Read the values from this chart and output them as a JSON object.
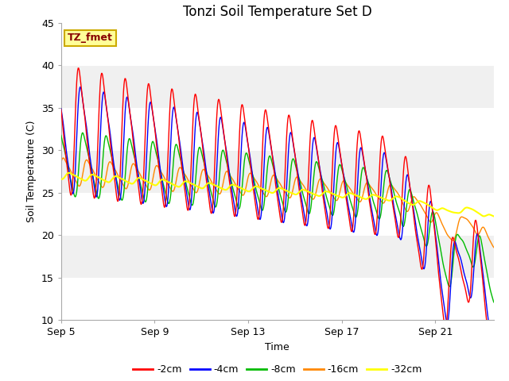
{
  "title": "Tonzi Soil Temperature Set D",
  "xlabel": "Time",
  "ylabel": "Soil Temperature (C)",
  "ylim": [
    10,
    45
  ],
  "colors": {
    "-2cm": "#ff0000",
    "-4cm": "#0000ff",
    "-8cm": "#00bb00",
    "-16cm": "#ff8800",
    "-32cm": "#ffff00"
  },
  "legend_labels": [
    "-2cm",
    "-4cm",
    "-8cm",
    "-16cm",
    "-32cm"
  ],
  "annotation_text": "TZ_fmet",
  "annotation_bg": "#ffff99",
  "annotation_border": "#ccaa00",
  "plot_bg_light": "#f0f0f0",
  "plot_bg_dark": "#e0e0e0",
  "grid_color": "#ffffff",
  "title_fontsize": 12,
  "axis_fontsize": 9,
  "tick_fontsize": 9,
  "x_tick_positions": [
    0,
    4,
    8,
    12,
    16
  ],
  "x_tick_labels": [
    "Sep 5",
    "Sep 9",
    "Sep 13",
    "Sep 17",
    "Sep 21"
  ],
  "y_ticks": [
    10,
    15,
    20,
    25,
    30,
    35,
    40,
    45
  ]
}
